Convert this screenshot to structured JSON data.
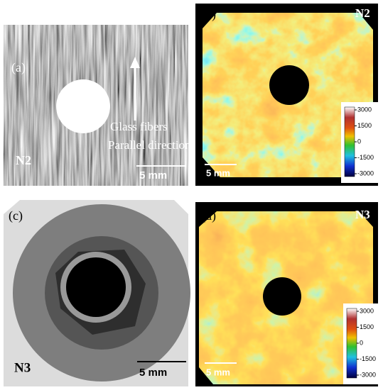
{
  "panels": [
    {
      "label": "(a)",
      "sample": "N2",
      "scale": "5 mm",
      "annotations": [
        "Glass fibers",
        "Parallel direction"
      ]
    },
    {
      "label": "(b)",
      "sample": "N2",
      "scale": "5 mm",
      "colorbar": [
        3000,
        1500,
        0,
        -1500,
        -3000
      ]
    },
    {
      "label": "(c)",
      "sample": "N3",
      "scale": "5 mm"
    },
    {
      "label": "(d)",
      "sample": "N3",
      "scale": "5 mm",
      "colorbar": [
        3000,
        1500,
        0,
        -1500,
        -3000
      ]
    }
  ]
}
